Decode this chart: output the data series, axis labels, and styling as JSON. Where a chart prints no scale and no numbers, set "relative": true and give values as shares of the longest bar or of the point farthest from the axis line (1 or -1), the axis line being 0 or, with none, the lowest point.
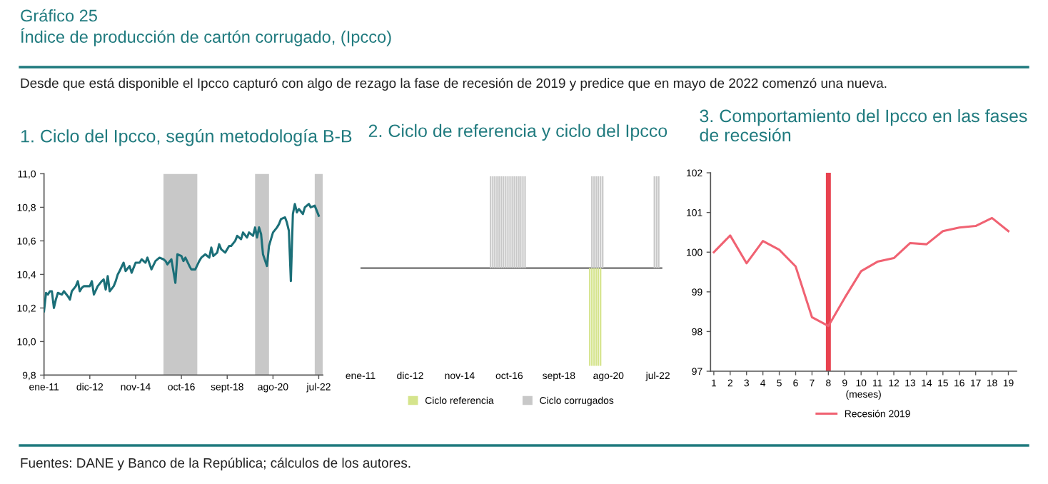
{
  "chart_data": [
    {
      "type": "other",
      "title": "Gráfico 25",
      "subtitle": "Índice de producción de cartón corrugado, (Ipcco)",
      "annotations": [
        "Desde que está disponible el Ipcco capturó con algo de rezago la fase de recesión de 2019 y predice que en mayo de 2022 comenzó una nueva.",
        "Fuentes: DANE y Banco de la República; cálculos de los autores."
      ]
    },
    {
      "type": "line",
      "title": "1. Ciclo del Ipcco, según metodología B-B",
      "x": [
        "2011-01",
        "2011-02",
        "2011-03",
        "2011-04",
        "2011-05",
        "2011-06",
        "2011-07",
        "2011-08",
        "2011-10",
        "2011-11",
        "2012-01",
        "2012-02",
        "2012-03",
        "2012-05",
        "2012-06",
        "2012-07",
        "2012-08",
        "2012-09",
        "2012-10",
        "2012-12",
        "2013-01",
        "2013-02",
        "2013-04",
        "2013-06",
        "2013-07",
        "2013-08",
        "2013-09",
        "2013-10",
        "2013-12",
        "2014-01",
        "2014-02",
        "2014-03",
        "2014-05",
        "2014-06",
        "2014-08",
        "2014-09",
        "2014-11",
        "2015-01",
        "2015-02",
        "2015-04",
        "2015-05",
        "2015-07",
        "2015-09",
        "2015-11",
        "2016-01",
        "2016-02",
        "2016-03",
        "2016-05",
        "2016-07",
        "2016-08",
        "2016-10",
        "2016-11",
        "2016-12",
        "2017-02",
        "2017-03",
        "2017-04",
        "2017-05",
        "2017-07",
        "2017-08",
        "2017-10",
        "2017-12",
        "2018-01",
        "2018-02",
        "2018-04",
        "2018-05",
        "2018-06",
        "2018-08",
        "2018-10",
        "2018-11",
        "2019-01",
        "2019-02",
        "2019-04",
        "2019-05",
        "2019-07",
        "2019-08",
        "2019-10",
        "2019-11",
        "2019-12",
        "2020-01",
        "2020-02",
        "2020-03",
        "2020-05",
        "2020-06",
        "2020-07",
        "2020-08",
        "2020-10",
        "2020-11",
        "2020-12",
        "2021-02",
        "2021-03",
        "2021-04",
        "2021-05",
        "2021-06",
        "2021-07",
        "2021-08",
        "2021-09",
        "2021-11",
        "2021-12",
        "2022-02",
        "2022-03",
        "2022-05",
        "2022-06",
        "2022-07"
      ],
      "series": [
        {
          "color": "#1b6f78",
          "values": [
            10.18,
            10.29,
            10.28,
            10.3,
            10.3,
            10.2,
            10.25,
            10.29,
            10.28,
            10.3,
            10.27,
            10.25,
            10.3,
            10.33,
            10.36,
            10.3,
            10.32,
            10.33,
            10.33,
            10.33,
            10.36,
            10.28,
            10.33,
            10.36,
            10.37,
            10.31,
            10.39,
            10.3,
            10.33,
            10.36,
            10.4,
            10.42,
            10.47,
            10.42,
            10.45,
            10.41,
            10.47,
            10.47,
            10.49,
            10.47,
            10.5,
            10.43,
            10.48,
            10.5,
            10.49,
            10.48,
            10.46,
            10.49,
            10.35,
            10.52,
            10.51,
            10.48,
            10.5,
            10.45,
            10.43,
            10.43,
            10.43,
            10.48,
            10.5,
            10.52,
            10.5,
            10.56,
            10.51,
            10.53,
            10.58,
            10.55,
            10.53,
            10.57,
            10.57,
            10.6,
            10.63,
            10.61,
            10.65,
            10.62,
            10.65,
            10.63,
            10.68,
            10.62,
            10.68,
            10.64,
            10.52,
            10.45,
            10.57,
            10.61,
            10.65,
            10.68,
            10.7,
            10.73,
            10.74,
            10.71,
            10.66,
            10.36,
            10.76,
            10.82,
            10.77,
            10.79,
            10.76,
            10.8,
            10.82,
            10.8,
            10.81,
            10.78,
            10.75
          ]
        }
      ],
      "xlim": [
        "2011-01",
        "2022-09"
      ],
      "xticks": [
        {
          "value": "2011-01",
          "label": "ene-11"
        },
        {
          "value": "2012-12",
          "label": "dic-12"
        },
        {
          "value": "2014-11",
          "label": "nov-14"
        },
        {
          "value": "2016-10",
          "label": "oct-16"
        },
        {
          "value": "2018-09",
          "label": "sept-18"
        },
        {
          "value": "2020-08",
          "label": "ago-20"
        },
        {
          "value": "2022-07",
          "label": "jul-22"
        }
      ],
      "ylim": [
        9.8,
        11.0
      ],
      "yticks": [
        {
          "value": 9.8,
          "label": "9,8"
        },
        {
          "value": 10.0,
          "label": "10,0"
        },
        {
          "value": 10.2,
          "label": "10,2"
        },
        {
          "value": 10.4,
          "label": "10,4"
        },
        {
          "value": 10.6,
          "label": "10,6"
        },
        {
          "value": 10.8,
          "label": "10,8"
        },
        {
          "value": 11.0,
          "label": "11,0"
        }
      ],
      "bands": [
        {
          "axis": "x",
          "from": "2016-01",
          "to": "2017-06",
          "color": "#c8c8c8"
        },
        {
          "axis": "x",
          "from": "2019-11",
          "to": "2020-06",
          "color": "#c8c8c8"
        },
        {
          "axis": "x",
          "from": "2022-05",
          "to": "2022-09",
          "color": "#c8c8c8"
        }
      ]
    },
    {
      "type": "bar",
      "title": "2. Ciclo de referencia y ciclo del Ipcco",
      "relative": true,
      "series": [
        {
          "name": "Ciclo referencia",
          "color": "#d5e48c",
          "x": [
            "2019-11",
            "2019-12",
            "2020-01",
            "2020-02",
            "2020-03",
            "2020-04"
          ],
          "values": [
            -1,
            -1,
            -1,
            -1,
            -1,
            -1
          ]
        },
        {
          "name": "Ciclo corrugados",
          "color": "#c8c8c8",
          "x": [
            "2016-01",
            "2016-02",
            "2016-03",
            "2016-04",
            "2016-05",
            "2016-06",
            "2016-07",
            "2016-08",
            "2016-09",
            "2016-10",
            "2016-11",
            "2016-12",
            "2017-01",
            "2017-02",
            "2017-03",
            "2017-04",
            "2017-05",
            "2019-12",
            "2020-01",
            "2020-02",
            "2020-03",
            "2020-04",
            "2020-05",
            "2022-05",
            "2022-06",
            "2022-07"
          ],
          "values": [
            0.94,
            0.94,
            0.94,
            0.94,
            0.94,
            0.94,
            0.94,
            0.94,
            0.94,
            0.94,
            0.94,
            0.94,
            0.94,
            0.94,
            0.94,
            0.94,
            0.94,
            0.94,
            0.94,
            0.94,
            0.94,
            0.94,
            0.94,
            0.94,
            0.94,
            0.94
          ]
        }
      ],
      "xlim": [
        "2011-01",
        "2022-09"
      ],
      "xticks": [
        {
          "value": "2011-01",
          "label": "ene-11"
        },
        {
          "value": "2012-12",
          "label": "dic-12"
        },
        {
          "value": "2014-11",
          "label": "nov-14"
        },
        {
          "value": "2016-10",
          "label": "oct-16"
        },
        {
          "value": "2018-09",
          "label": "sept-18"
        },
        {
          "value": "2020-08",
          "label": "ago-20"
        },
        {
          "value": "2022-07",
          "label": "jul-22"
        }
      ],
      "tick_labels": "x",
      "legend": "bottom"
    },
    {
      "type": "line",
      "title": "3. Comportamiento del Ipcco en las fases\nde recesión",
      "xlabel": "(meses)",
      "x": [
        1,
        2,
        3,
        4,
        5,
        6,
        7,
        8,
        9,
        10,
        11,
        12,
        13,
        14,
        15,
        16,
        17,
        18,
        19
      ],
      "series": [
        {
          "name": "Recesión 2019",
          "color": "#f06272",
          "values": [
            100.0,
            100.42,
            99.72,
            100.28,
            100.06,
            99.64,
            98.36,
            98.14,
            98.85,
            99.52,
            99.76,
            99.85,
            100.23,
            100.2,
            100.53,
            100.62,
            100.66,
            100.86,
            100.53
          ]
        }
      ],
      "xlim": [
        0.8,
        19.5
      ],
      "xticks": [
        1,
        2,
        3,
        4,
        5,
        6,
        7,
        8,
        9,
        10,
        11,
        12,
        13,
        14,
        15,
        16,
        17,
        18,
        19
      ],
      "ylim": [
        97,
        102
      ],
      "yticks": [
        97,
        98,
        99,
        100,
        101,
        102
      ],
      "ref_lines": [
        {
          "axis": "x",
          "value": 8,
          "color": "#e8414f"
        }
      ],
      "legend": "bottom"
    }
  ]
}
